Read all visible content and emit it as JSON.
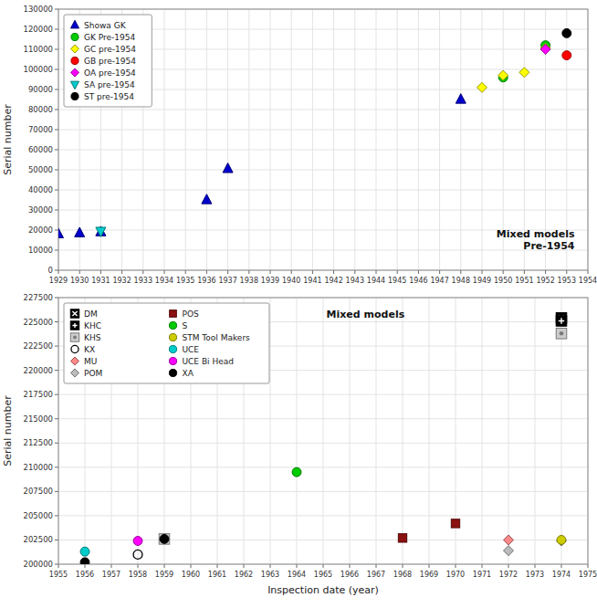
{
  "chart_data": [
    {
      "type": "scatter",
      "ylabel": "Serial number",
      "annotation": "Mixed models\nPre-1954",
      "xlim": [
        1929,
        1954
      ],
      "ylim": [
        0,
        130000
      ],
      "xticks": [
        1929,
        1930,
        1931,
        1932,
        1933,
        1934,
        1935,
        1936,
        1937,
        1938,
        1939,
        1940,
        1941,
        1942,
        1943,
        1944,
        1945,
        1946,
        1947,
        1948,
        1949,
        1950,
        1951,
        1952,
        1953,
        1954
      ],
      "yticks": [
        0,
        10000,
        20000,
        30000,
        40000,
        50000,
        60000,
        70000,
        80000,
        90000,
        100000,
        110000,
        120000,
        130000
      ],
      "grid": true,
      "legend": "upper-left",
      "series": [
        {
          "name": "Showa GK",
          "marker": "triangle-up",
          "color": "#0000CC",
          "x": [
            1929,
            1930,
            1931,
            1936,
            1937,
            1948
          ],
          "values": [
            18000,
            18500,
            19000,
            35000,
            50500,
            85000
          ]
        },
        {
          "name": "GK Pre-1954",
          "marker": "circle",
          "color": "#00CC00",
          "x": [
            1950,
            1952
          ],
          "values": [
            96000,
            112000
          ]
        },
        {
          "name": "GC pre-1954",
          "marker": "diamond",
          "color": "#FFFF00",
          "x": [
            1949,
            1950,
            1951,
            1952
          ],
          "values": [
            91000,
            97000,
            98500,
            110500
          ]
        },
        {
          "name": "GB pre-1954",
          "marker": "circle",
          "color": "#FF0000",
          "x": [
            1953
          ],
          "values": [
            107000
          ]
        },
        {
          "name": "OA pre-1954",
          "marker": "diamond",
          "color": "#FF00FF",
          "x": [
            1952
          ],
          "values": [
            110000
          ]
        },
        {
          "name": "SA pre-1954",
          "marker": "triangle-down",
          "color": "#00CCCC",
          "x": [
            1931
          ],
          "values": [
            19500
          ]
        },
        {
          "name": "ST pre-1954",
          "marker": "circle",
          "color": "#000000",
          "x": [
            1953
          ],
          "values": [
            118000
          ]
        }
      ]
    },
    {
      "type": "scatter",
      "annotation": "Mixed models",
      "ylabel": "Serial number",
      "xlabel": "Inspection date (year)",
      "xlim": [
        1955,
        1975
      ],
      "ylim": [
        200000,
        227500
      ],
      "xticks": [
        1955,
        1956,
        1957,
        1958,
        1959,
        1960,
        1961,
        1962,
        1963,
        1964,
        1965,
        1966,
        1967,
        1968,
        1969,
        1970,
        1971,
        1972,
        1973,
        1974,
        1975
      ],
      "yticks": [
        200000,
        202500,
        205000,
        207500,
        210000,
        212500,
        215000,
        217500,
        220000,
        222500,
        225000,
        227500
      ],
      "grid": true,
      "legend": "upper-left",
      "series": [
        {
          "name": "DM",
          "marker": "box-x",
          "color": "#000000",
          "x": [
            1974
          ],
          "values": [
            225400
          ]
        },
        {
          "name": "KHC",
          "marker": "box-plus",
          "color": "#000000",
          "x": [
            1974
          ],
          "values": [
            225100
          ]
        },
        {
          "name": "KHS",
          "marker": "box-dot",
          "color": "#CCCCCC",
          "x": [
            1959,
            1974
          ],
          "values": [
            202600,
            223800
          ]
        },
        {
          "name": "KX",
          "marker": "open-circle",
          "color": "#000000",
          "x": [
            1958
          ],
          "values": [
            201000
          ]
        },
        {
          "name": "MU",
          "marker": "diamond",
          "color": "#FF8888",
          "x": [
            1972
          ],
          "values": [
            202500
          ]
        },
        {
          "name": "POM",
          "marker": "diamond",
          "color": "#BBBBBB",
          "x": [
            1972,
            1974
          ],
          "values": [
            201400,
            202400
          ]
        },
        {
          "name": "POS",
          "marker": "square",
          "color": "#8B1010",
          "x": [
            1968,
            1970
          ],
          "values": [
            202700,
            204200
          ]
        },
        {
          "name": "S",
          "marker": "circle",
          "color": "#00CC00",
          "x": [
            1964
          ],
          "values": [
            209500
          ]
        },
        {
          "name": "STM Tool Makers",
          "marker": "circle",
          "color": "#CCCC00",
          "x": [
            1974
          ],
          "values": [
            202500
          ]
        },
        {
          "name": "UCE",
          "marker": "circle",
          "color": "#00CCCC",
          "x": [
            1956
          ],
          "values": [
            201300
          ]
        },
        {
          "name": "UCE Bi Head",
          "marker": "circle",
          "color": "#FF00FF",
          "x": [
            1958
          ],
          "values": [
            202400
          ]
        },
        {
          "name": "XA",
          "marker": "circle",
          "color": "#000000",
          "x": [
            1956,
            1959
          ],
          "values": [
            200200,
            202600
          ]
        }
      ]
    }
  ]
}
